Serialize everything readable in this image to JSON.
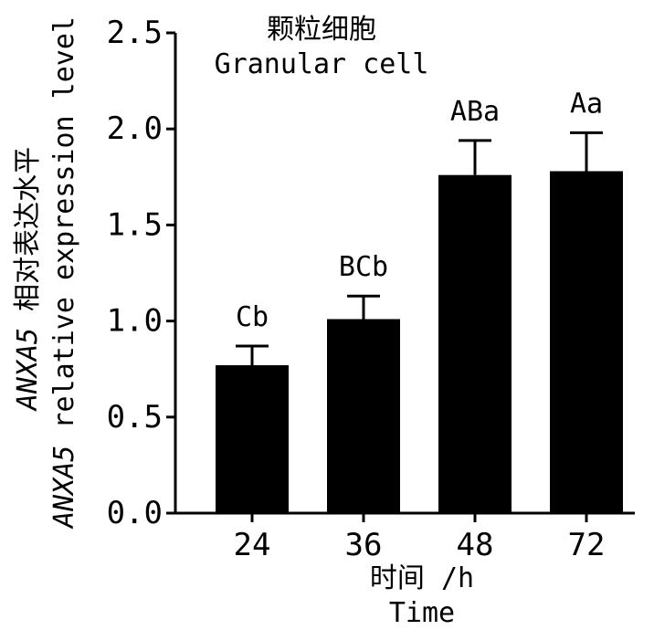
{
  "chart_data": {
    "type": "bar",
    "title_cn": "颗粒细胞",
    "title_en": "Granular cell",
    "categories": [
      "24",
      "36",
      "48",
      "72"
    ],
    "values": [
      0.77,
      1.01,
      1.76,
      1.78
    ],
    "error_plus": [
      0.1,
      0.12,
      0.18,
      0.2
    ],
    "significance_labels": [
      "Cb",
      "BCb",
      "ABa",
      "Aa"
    ],
    "ylim": [
      0,
      2.5
    ],
    "yticks": [
      0.0,
      0.5,
      1.0,
      1.5,
      2.0,
      2.5
    ],
    "ytick_labels": [
      "0.0",
      "0.5",
      "1.0",
      "1.5",
      "2.0",
      "2.5"
    ],
    "xlabel_cn": "时间 /h",
    "xlabel_en": "Time",
    "ylabel_line1": {
      "gene": "ANXA5",
      "text": " 相对表达水平"
    },
    "ylabel_line2": {
      "gene": "ANXA5",
      "text": " relative expression level"
    },
    "bar_color": "#000000"
  }
}
